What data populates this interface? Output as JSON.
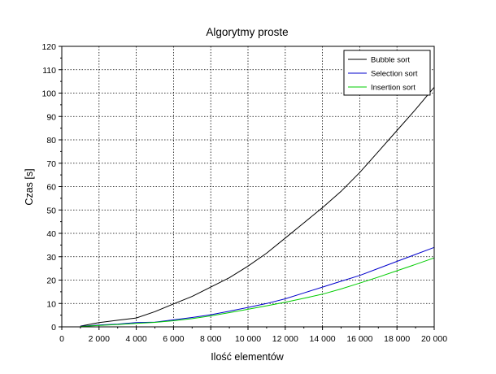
{
  "chart_data": {
    "type": "line",
    "title": "Algorytmy proste",
    "xlabel": "Ilość elementów",
    "ylabel": "Czas [s]",
    "xlim": [
      0,
      20000
    ],
    "ylim": [
      0,
      120
    ],
    "x_ticks": [
      0,
      2000,
      4000,
      6000,
      8000,
      10000,
      12000,
      14000,
      16000,
      18000,
      20000
    ],
    "x_tick_labels": [
      "0",
      "2 000",
      "4 000",
      "6 000",
      "8 000",
      "10 000",
      "12 000",
      "14 000",
      "16 000",
      "18 000",
      "20 000"
    ],
    "y_ticks": [
      0,
      10,
      20,
      30,
      40,
      50,
      60,
      70,
      80,
      90,
      100,
      110,
      120
    ],
    "y_tick_labels": [
      "0",
      "10",
      "20",
      "30",
      "40",
      "50",
      "60",
      "70",
      "80",
      "90",
      "100",
      "110",
      "120"
    ],
    "grid": true,
    "legend_position": "top-right",
    "x": [
      1000,
      2000,
      3000,
      4000,
      5000,
      6000,
      7000,
      8000,
      9000,
      10000,
      11000,
      12000,
      13000,
      14000,
      15000,
      16000,
      17000,
      18000,
      19000,
      20000
    ],
    "series": [
      {
        "name": "Bubble sort",
        "color": "#000000",
        "values": [
          0.3,
          1.8,
          2.8,
          3.8,
          6.5,
          9.8,
          13.0,
          17.0,
          21.0,
          26.0,
          31.5,
          38.0,
          44.5,
          51.0,
          58.0,
          66.0,
          75.0,
          84.0,
          93.0,
          102.5
        ]
      },
      {
        "name": "Selection sort",
        "color": "#0000cc",
        "values": [
          0.2,
          0.8,
          1.2,
          1.8,
          2.0,
          3.0,
          4.0,
          5.2,
          6.7,
          8.3,
          10.0,
          12.0,
          14.5,
          17.0,
          19.5,
          22.0,
          25.0,
          28.0,
          31.0,
          34.0
        ]
      },
      {
        "name": "Insertion sort",
        "color": "#00cc00",
        "values": [
          0.15,
          0.6,
          1.0,
          1.5,
          1.9,
          2.6,
          3.5,
          4.7,
          6.1,
          7.5,
          9.0,
          10.5,
          12.2,
          14.0,
          16.2,
          18.7,
          21.3,
          24.0,
          26.7,
          29.5
        ]
      }
    ]
  }
}
